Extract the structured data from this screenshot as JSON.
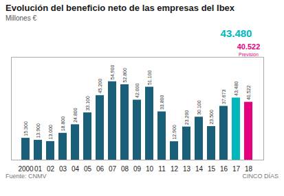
{
  "chart_data": {
    "type": "bar",
    "title": "Evolución del beneficio neto de las empresas del Ibex",
    "subtitle": "Millones €",
    "source": "Fuente: CNMV",
    "brand": "CINCO DÍAS",
    "categories": [
      "2000",
      "01",
      "02",
      "03",
      "04",
      "05",
      "06",
      "07",
      "08",
      "09",
      "10",
      "11",
      "12",
      "13",
      "14",
      "15",
      "16",
      "17",
      "18"
    ],
    "values": [
      15300,
      13900,
      13000,
      18800,
      24800,
      33100,
      45200,
      54900,
      52800,
      42000,
      51100,
      33800,
      12900,
      23200,
      30100,
      23500,
      37673,
      43480,
      40522
    ],
    "value_labels": [
      "15.300",
      "13.900",
      "13.000",
      "18.800",
      "24.800",
      "33.100",
      "45.200",
      "54.900",
      "52.800",
      "42.000",
      "51.100",
      "33.800",
      "12.900",
      "23.200",
      "30.100",
      "23.500",
      "37.673",
      "43.480",
      "40.522"
    ],
    "colors": [
      "#1a5f7a",
      "#1a5f7a",
      "#1a5f7a",
      "#1a5f7a",
      "#1a5f7a",
      "#1a5f7a",
      "#1a5f7a",
      "#1a5f7a",
      "#1a5f7a",
      "#1a5f7a",
      "#1a5f7a",
      "#1a5f7a",
      "#1a5f7a",
      "#1a5f7a",
      "#1a5f7a",
      "#1a5f7a",
      "#1a5f7a",
      "#00b8bc",
      "#e5007d"
    ],
    "annotations": [
      {
        "text": "43.480",
        "color": "#00b8bc",
        "category": "17"
      },
      {
        "text": "40.522",
        "color": "#e5007d",
        "category": "18"
      },
      {
        "text": "Previsión",
        "color": "#e5007d",
        "category": "18"
      }
    ],
    "ylim": [
      0,
      72000
    ],
    "data_labels": true,
    "tick_labels": "x",
    "grid": false
  }
}
